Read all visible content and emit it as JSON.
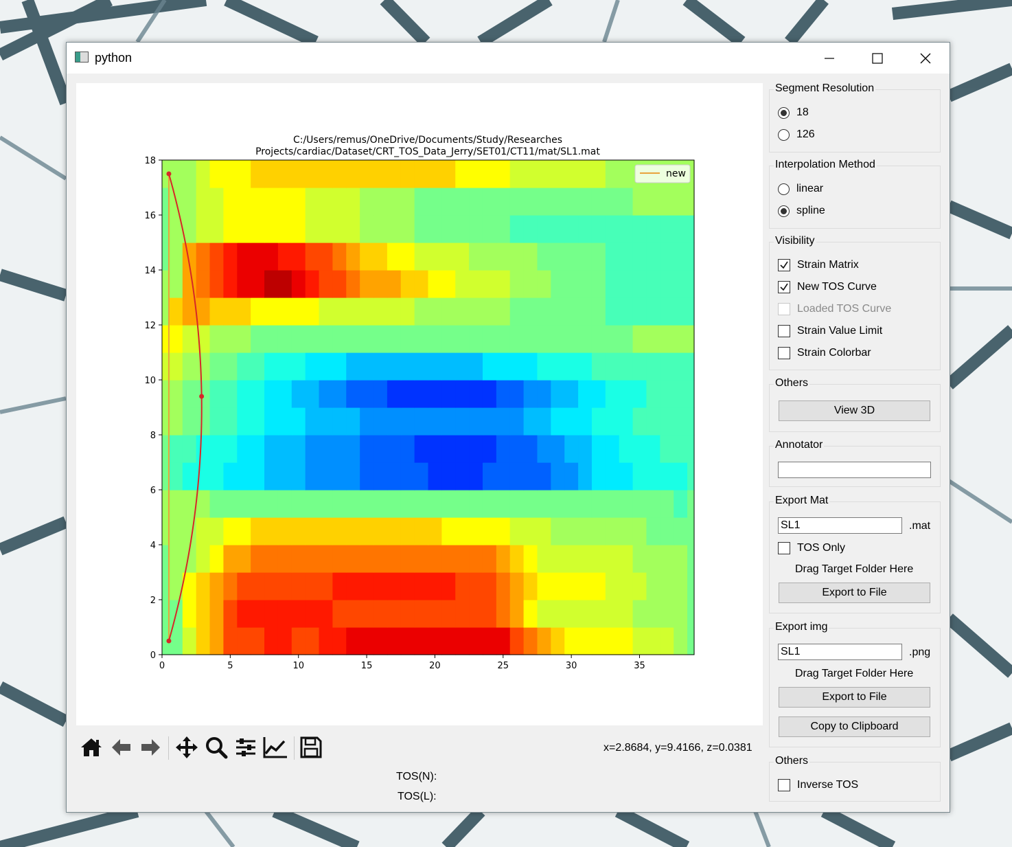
{
  "window": {
    "title": "python"
  },
  "plot": {
    "title_line1": "C:/Users/remus/OneDrive/Documents/Study/Researches",
    "title_line2": "Projects/cardiac/Dataset/CRT_TOS_Data_Jerry/SET01/CT11/mat/SL1.mat",
    "legend_label": "new"
  },
  "chart_data": {
    "type": "heatmap",
    "title": "C:/Users/remus/OneDrive/Documents/Study/Researches Projects/cardiac/Dataset/CRT_TOS_Data_Jerry/SET01/CT11/mat/SL1.mat",
    "xlim": [
      0,
      39
    ],
    "ylim": [
      0,
      18
    ],
    "x_ticks": [
      0,
      5,
      10,
      15,
      20,
      25,
      30,
      35
    ],
    "y_ticks": [
      0,
      2,
      4,
      6,
      8,
      10,
      12,
      14,
      16,
      18
    ],
    "colormap": "jet",
    "rows_bottom_to_top": [
      "AACEFHHHIIHHIIJJJJJJJJJJJJHGFEDDDDDCCCBA",
      "AADEFHIIIIIIIHHHHHHHHHHHHGFDCCCCCCCBBBBA",
      "ABDEFGHHHHHHHIIIIIIIIIHHHGFEDDDDDCCCBBBA",
      "ABBCDFFGGGGGGGGGGGGGGGGGGFEDCCCCCCCBBBBA",
      "BBBCCDDEEEEEEEEEEEEEEDDDDDCCCBBBBBBBAAAA",
      "BBBBAAAAAAAAAAAAAAAAAAAAAAAAAAAAAAAAAA9A",
      "A988877766655554444433334444455677788889",
      "A998887766655554444333333444556677888999",
      "BBAA998877766665555555555556677788899999",
      "BBAA998877665544433333333445566778889999",
      "CCBBAA9988877766666666667777888899999999",
      "DDCCBBBAAAAAAAAAAAAAAAAAAAAAAAAAAAABBBBB",
      "BEFFEEEDDDDDCCCCCCCBBBBBBBAAAAAAA9999999",
      "BBFGHIJJKKJIHHGFFFEEDDCCCCBBBAAAA9999999",
      "ABFGHIJJJIIHHGFEEDDCCCCBBBBBAAAAA9999999",
      "ABBCCDDDDDDCCCCBBBBAAAAAAA99999999999999",
      "ABBCCDDDDDDCCCCBBBBAAAAAAAAAAAAAAAABBBBB",
      "BBBCDDDEEEEEEEEEEEEEEEDDDDCCCCCCCBBBBBBB"
    ],
    "series": [
      {
        "name": "new",
        "type": "line",
        "color": "#e8a33c",
        "x": [
          0.5,
          0.5
        ],
        "y": [
          0.5,
          17.5
        ]
      },
      {
        "type": "spline",
        "color": "#d62728",
        "x": [
          0.5,
          2.9,
          0.5
        ],
        "y": [
          0.5,
          9.4,
          17.5
        ]
      }
    ]
  },
  "toolbar": {
    "icons": [
      "home-icon",
      "back-icon",
      "forward-icon",
      "pan-icon",
      "zoom-icon",
      "configure-icon",
      "edit-axis-icon",
      "save-icon"
    ],
    "coords": "x=2.8684, y=9.4166, z=0.0381"
  },
  "tos": {
    "n_label": "TOS(N):",
    "l_label": "TOS(L):"
  },
  "panel": {
    "segment_resolution": {
      "title": "Segment Resolution",
      "options": [
        "18",
        "126"
      ],
      "selected": "18"
    },
    "interpolation_method": {
      "title": "Interpolation Method",
      "options": [
        "linear",
        "spline"
      ],
      "selected": "spline"
    },
    "visibility": {
      "title": "Visibility",
      "items": [
        {
          "label": "Strain Matrix",
          "checked": true,
          "enabled": true
        },
        {
          "label": "New TOS Curve",
          "checked": true,
          "enabled": true
        },
        {
          "label": "Loaded TOS Curve",
          "checked": false,
          "enabled": false
        },
        {
          "label": "Strain Value Limit",
          "checked": false,
          "enabled": true
        },
        {
          "label": "Strain Colorbar",
          "checked": false,
          "enabled": true
        }
      ]
    },
    "others1": {
      "title": "Others",
      "button": "View 3D"
    },
    "annotator": {
      "title": "Annotator",
      "value": ""
    },
    "export_mat": {
      "title": "Export Mat",
      "filename": "SL1",
      "ext": ".mat",
      "tos_only": "TOS Only",
      "drag": "Drag Target Folder Here",
      "button": "Export to File"
    },
    "export_img": {
      "title": "Export img",
      "filename": "SL1",
      "ext": ".png",
      "drag": "Drag Target Folder Here",
      "button": "Export to File",
      "copy_button": "Copy to Clipboard"
    },
    "others2": {
      "title": "Others",
      "inverse_tos": "Inverse TOS"
    }
  }
}
